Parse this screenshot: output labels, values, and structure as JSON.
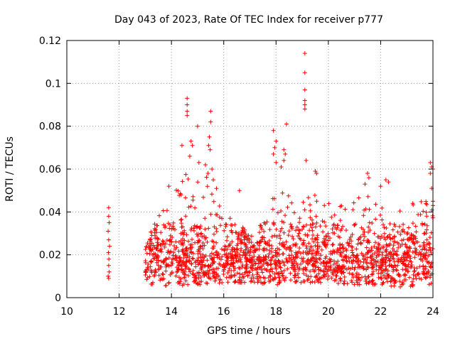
{
  "chart_data": {
    "type": "scatter",
    "title": "Day 043 of 2023, Rate Of TEC Index for receiver p777",
    "xlabel": "GPS time / hours",
    "ylabel": "ROTI / TECUs",
    "xlim": [
      10,
      24
    ],
    "ylim": [
      0,
      0.12
    ],
    "xticks": [
      "10",
      "12",
      "14",
      "16",
      "18",
      "20",
      "22",
      "24"
    ],
    "yticks": [
      "0",
      "0.02",
      "0.04",
      "0.06",
      "0.08",
      "0.1",
      "0.12"
    ],
    "grid": true,
    "marker": "+",
    "color": "#ff0000",
    "series": [
      {
        "name": "ROTI",
        "points": [
          [
            11.6,
            0.042
          ],
          [
            11.6,
            0.038
          ],
          [
            11.62,
            0.035
          ],
          [
            11.58,
            0.031
          ],
          [
            11.6,
            0.027
          ],
          [
            11.63,
            0.024
          ],
          [
            11.59,
            0.021
          ],
          [
            11.61,
            0.018
          ],
          [
            11.6,
            0.015
          ],
          [
            11.62,
            0.012
          ],
          [
            11.58,
            0.01
          ],
          [
            11.6,
            0.009
          ],
          [
            13.9,
            0.052
          ],
          [
            14.4,
            0.071
          ],
          [
            14.6,
            0.093
          ],
          [
            14.6,
            0.09
          ],
          [
            14.6,
            0.087
          ],
          [
            14.6,
            0.085
          ],
          [
            14.75,
            0.073
          ],
          [
            14.8,
            0.071
          ],
          [
            14.7,
            0.066
          ],
          [
            15.0,
            0.08
          ],
          [
            15.05,
            0.063
          ],
          [
            15.5,
            0.087
          ],
          [
            15.5,
            0.082
          ],
          [
            15.45,
            0.075
          ],
          [
            15.42,
            0.071
          ],
          [
            15.48,
            0.069
          ],
          [
            15.3,
            0.062
          ],
          [
            15.55,
            0.06
          ],
          [
            15.4,
            0.058
          ],
          [
            15.6,
            0.055
          ],
          [
            16.6,
            0.05
          ],
          [
            17.9,
            0.078
          ],
          [
            18.0,
            0.073
          ],
          [
            17.95,
            0.07
          ],
          [
            17.9,
            0.067
          ],
          [
            18.0,
            0.063
          ],
          [
            18.3,
            0.069
          ],
          [
            18.35,
            0.067
          ],
          [
            18.3,
            0.064
          ],
          [
            18.2,
            0.061
          ],
          [
            18.4,
            0.081
          ],
          [
            19.1,
            0.114
          ],
          [
            19.1,
            0.105
          ],
          [
            19.1,
            0.097
          ],
          [
            19.1,
            0.092
          ],
          [
            19.1,
            0.09
          ],
          [
            19.1,
            0.088
          ],
          [
            19.15,
            0.064
          ],
          [
            19.5,
            0.059
          ],
          [
            19.55,
            0.058
          ],
          [
            21.5,
            0.058
          ],
          [
            21.55,
            0.056
          ],
          [
            21.4,
            0.053
          ],
          [
            22.2,
            0.055
          ],
          [
            22.3,
            0.054
          ],
          [
            22.0,
            0.052
          ],
          [
            23.9,
            0.063
          ],
          [
            23.95,
            0.061
          ],
          [
            24.0,
            0.06
          ],
          [
            23.9,
            0.058
          ],
          [
            23.95,
            0.051
          ],
          [
            24.0,
            0.045
          ],
          [
            24.0,
            0.043
          ]
        ]
      }
    ],
    "dense_band": {
      "x_range": [
        13.0,
        24.0
      ],
      "typical_range": [
        0.005,
        0.035
      ],
      "upper_envelope": [
        [
          13.0,
          0.028
        ],
        [
          13.5,
          0.038
        ],
        [
          14.0,
          0.045
        ],
        [
          14.5,
          0.06
        ],
        [
          15.0,
          0.055
        ],
        [
          15.5,
          0.06
        ],
        [
          16.0,
          0.04
        ],
        [
          16.5,
          0.035
        ],
        [
          17.0,
          0.033
        ],
        [
          17.5,
          0.035
        ],
        [
          18.0,
          0.05
        ],
        [
          18.5,
          0.055
        ],
        [
          19.0,
          0.05
        ],
        [
          19.5,
          0.05
        ],
        [
          20.0,
          0.045
        ],
        [
          20.5,
          0.045
        ],
        [
          21.0,
          0.045
        ],
        [
          21.5,
          0.05
        ],
        [
          22.0,
          0.05
        ],
        [
          22.5,
          0.048
        ],
        [
          23.0,
          0.045
        ],
        [
          23.5,
          0.045
        ],
        [
          24.0,
          0.045
        ]
      ],
      "lower_envelope": [
        [
          13.0,
          0.006
        ],
        [
          14.0,
          0.005
        ],
        [
          15.0,
          0.006
        ],
        [
          16.0,
          0.007
        ],
        [
          17.0,
          0.007
        ],
        [
          18.0,
          0.006
        ],
        [
          19.0,
          0.007
        ],
        [
          20.0,
          0.007
        ],
        [
          21.0,
          0.006
        ],
        [
          22.0,
          0.006
        ],
        [
          22.5,
          0.004
        ],
        [
          23.0,
          0.005
        ],
        [
          24.0,
          0.005
        ]
      ],
      "note_points_per_hour": 170
    }
  }
}
